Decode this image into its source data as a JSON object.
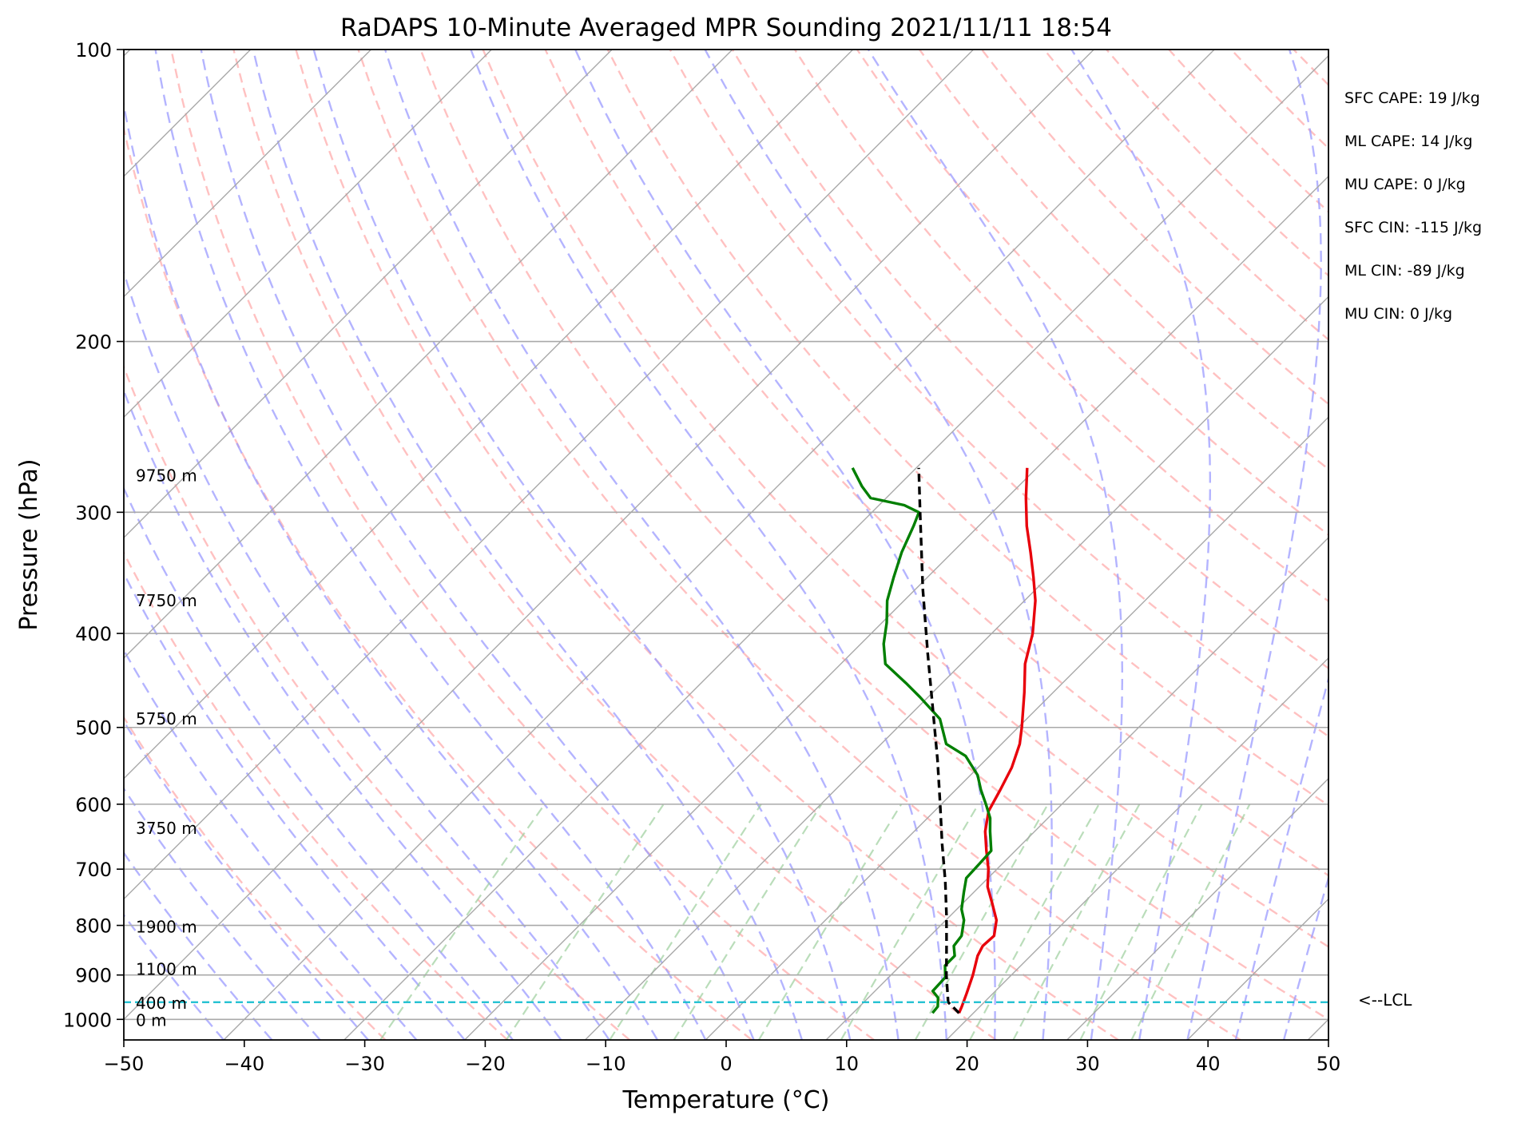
{
  "chart_data": {
    "type": "line",
    "title": "RaDAPS 10-Minute Averaged MPR Sounding 2021/11/11 18:54",
    "xlabel": "Temperature (°C)",
    "ylabel": "Pressure (hPa)",
    "xlim": [
      -50,
      50
    ],
    "ylim": [
      1050,
      100
    ],
    "y_scale": "log",
    "skew_t": true,
    "grid": true,
    "x_ticks": [
      -50,
      -40,
      -30,
      -20,
      -10,
      0,
      10,
      20,
      30,
      40,
      50
    ],
    "x_tick_labels": [
      "−50",
      "−40",
      "−30",
      "−20",
      "−10",
      "0",
      "10",
      "20",
      "30",
      "40",
      "50"
    ],
    "y_ticks": [
      1000,
      900,
      800,
      700,
      600,
      500,
      400,
      300,
      200,
      100
    ],
    "y_tick_labels": [
      "1000",
      "900",
      "800",
      "700",
      "600",
      "500",
      "400",
      "300",
      "200",
      "100"
    ],
    "series": [
      {
        "key": "temperature",
        "color": "#e8000b",
        "style": "solid",
        "points": [
          [
            18.8,
            985
          ],
          [
            18.5,
            970
          ],
          [
            17.8,
            940
          ],
          [
            16.8,
            900
          ],
          [
            15.6,
            860
          ],
          [
            15.2,
            840
          ],
          [
            15.3,
            820
          ],
          [
            14.2,
            790
          ],
          [
            12.5,
            760
          ],
          [
            10.7,
            730
          ],
          [
            9.3,
            700
          ],
          [
            7.6,
            670
          ],
          [
            5.9,
            640
          ],
          [
            4.5,
            610
          ],
          [
            3.7,
            580
          ],
          [
            2.8,
            550
          ],
          [
            1.5,
            520
          ],
          [
            0.3,
            500
          ],
          [
            -2.4,
            460
          ],
          [
            -4.7,
            430
          ],
          [
            -6.6,
            400
          ],
          [
            -9.1,
            370
          ],
          [
            -11.2,
            350
          ],
          [
            -13.5,
            330
          ],
          [
            -16.0,
            310
          ],
          [
            -18.4,
            290
          ],
          [
            -20.8,
            270
          ]
        ]
      },
      {
        "key": "dewpoint",
        "color": "#007f00",
        "style": "solid",
        "points": [
          [
            16.6,
            985
          ],
          [
            16.5,
            970
          ],
          [
            15.8,
            950
          ],
          [
            14.8,
            935
          ],
          [
            14.7,
            905
          ],
          [
            13.7,
            880
          ],
          [
            13.7,
            860
          ],
          [
            12.8,
            840
          ],
          [
            12.6,
            820
          ],
          [
            11.5,
            790
          ],
          [
            10.4,
            770
          ],
          [
            9.2,
            740
          ],
          [
            8.2,
            715
          ],
          [
            8.1,
            690
          ],
          [
            8.0,
            670
          ],
          [
            6.3,
            640
          ],
          [
            5.2,
            620
          ],
          [
            3.7,
            600
          ],
          [
            2.1,
            580
          ],
          [
            0.6,
            560
          ],
          [
            -2.0,
            535
          ],
          [
            -4.6,
            520
          ],
          [
            -7.2,
            490
          ],
          [
            -10.7,
            465
          ],
          [
            -13.0,
            450
          ],
          [
            -16.3,
            430
          ],
          [
            -18.1,
            410
          ],
          [
            -19.6,
            390
          ],
          [
            -21.4,
            370
          ],
          [
            -22.8,
            350
          ],
          [
            -24.2,
            330
          ],
          [
            -25.4,
            310
          ],
          [
            -26.1,
            300
          ],
          [
            -27.9,
            295
          ],
          [
            -31.3,
            290
          ],
          [
            -33.0,
            282
          ],
          [
            -35.3,
            270
          ]
        ]
      },
      {
        "key": "parcel",
        "color": "#000000",
        "style": "dashed",
        "points": [
          [
            18.8,
            985
          ],
          [
            17.0,
            960
          ],
          [
            14.6,
            900
          ],
          [
            12.2,
            840
          ],
          [
            9.6,
            780
          ],
          [
            6.7,
            720
          ],
          [
            3.4,
            660
          ],
          [
            -0.1,
            600
          ],
          [
            -4.0,
            540
          ],
          [
            -8.5,
            480
          ],
          [
            -13.6,
            420
          ],
          [
            -19.4,
            360
          ],
          [
            -26.0,
            300
          ],
          [
            -29.8,
            270
          ]
        ]
      },
      {
        "key": "lcl",
        "color": "#17becf",
        "style": "dashed",
        "pressure": 960
      }
    ],
    "annotations": {
      "lcl_label": "<--LCL",
      "heights": [
        {
          "text": "9750 m",
          "p": 275
        },
        {
          "text": "7750 m",
          "p": 370
        },
        {
          "text": "5750 m",
          "p": 490
        },
        {
          "text": "3750 m",
          "p": 635
        },
        {
          "text": "1900 m",
          "p": 803
        },
        {
          "text": "1100 m",
          "p": 888
        },
        {
          "text": "400 m",
          "p": 962
        },
        {
          "text": "0 m",
          "p": 1002
        }
      ],
      "indices": [
        "SFC CAPE: 19 J/kg",
        "ML CAPE: 14 J/kg",
        "MU CAPE: 0 J/kg",
        "SFC CIN: -115 J/kg",
        "ML CIN: -89 J/kg",
        "MU CIN: 0 J/kg"
      ]
    },
    "reference_lines": {
      "isotherms_color": "#a9a9a9",
      "dry_adiabats_color": "#ffa0a0",
      "moist_adiabats_color": "#9b9bff",
      "mixing_ratio_color": "#9ccf9c"
    }
  }
}
